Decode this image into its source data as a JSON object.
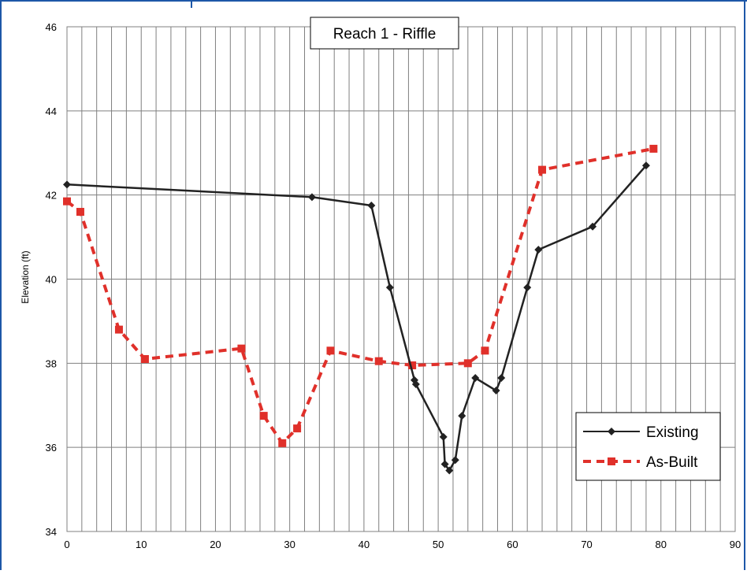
{
  "chart_data": {
    "type": "line",
    "title": "Reach 1 - Riffle",
    "xlabel": "",
    "ylabel": "Elevation (ft)",
    "xlim": [
      0,
      90
    ],
    "ylim": [
      34,
      46
    ],
    "xticks": [
      0,
      10,
      20,
      30,
      40,
      50,
      60,
      70,
      80,
      90
    ],
    "yticks": [
      34,
      36,
      38,
      40,
      42,
      44,
      46
    ],
    "grid": true,
    "legend_position": "bottom-right",
    "series": [
      {
        "name": "Existing",
        "color": "#222222",
        "line_style": "solid",
        "marker": "diamond",
        "points": [
          [
            0,
            42.25
          ],
          [
            33,
            41.95
          ],
          [
            41,
            41.75
          ],
          [
            43.5,
            39.8
          ],
          [
            46.8,
            37.6
          ],
          [
            47,
            37.5
          ],
          [
            50.7,
            36.25
          ],
          [
            50.9,
            35.6
          ],
          [
            51.5,
            35.45
          ],
          [
            52.3,
            35.7
          ],
          [
            53.2,
            36.75
          ],
          [
            55,
            37.65
          ],
          [
            57.8,
            37.35
          ],
          [
            58.5,
            37.65
          ],
          [
            62,
            39.8
          ],
          [
            63.5,
            40.7
          ],
          [
            70.8,
            41.25
          ],
          [
            78,
            42.7
          ]
        ]
      },
      {
        "name": "As-Built",
        "color": "#e0302a",
        "line_style": "dashed",
        "marker": "square",
        "points": [
          [
            0,
            41.85
          ],
          [
            1.8,
            41.6
          ],
          [
            7,
            38.8
          ],
          [
            10.5,
            38.1
          ],
          [
            23.5,
            38.35
          ],
          [
            26.5,
            36.75
          ],
          [
            29,
            36.1
          ],
          [
            31,
            36.45
          ],
          [
            35.5,
            38.3
          ],
          [
            42,
            38.05
          ],
          [
            46.5,
            37.95
          ],
          [
            54,
            38
          ],
          [
            56.3,
            38.3
          ],
          [
            64,
            42.6
          ],
          [
            79,
            43.1
          ]
        ]
      }
    ]
  }
}
